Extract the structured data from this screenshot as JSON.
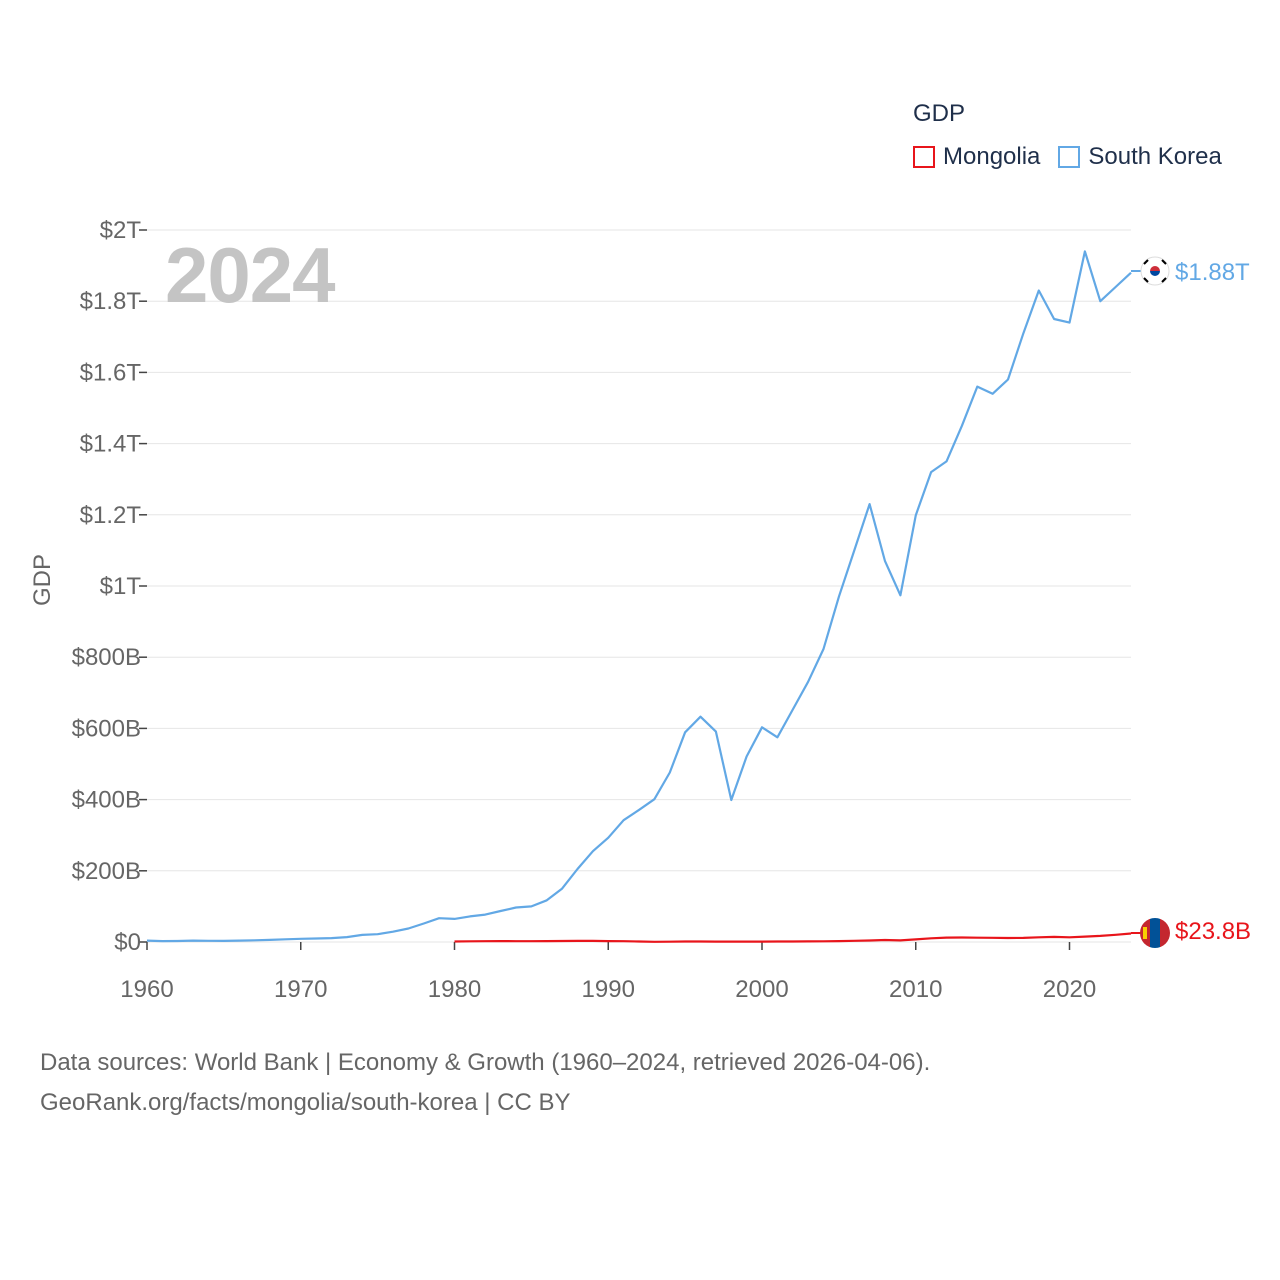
{
  "legend": {
    "title": "GDP",
    "items": [
      {
        "name": "Mongolia",
        "color": "#e8151b"
      },
      {
        "name": "South Korea",
        "color": "#62a8e5"
      }
    ]
  },
  "year_display": "2024",
  "footer": {
    "line1": "Data sources: World Bank | Economy & Growth (1960–2024, retrieved 2026-04-06).",
    "line2": "GeoRank.org/facts/mongolia/south-korea | CC BY"
  },
  "end_labels": {
    "south_korea": "$1.88T",
    "mongolia": "$23.8B"
  },
  "icons": {
    "south_korea_flag": "south-korea-flag-icon",
    "mongolia_flag": "mongolia-flag-icon"
  },
  "chart_data": {
    "type": "line",
    "title": "",
    "xlabel": "",
    "ylabel": "GDP",
    "xlim": [
      1960,
      2024
    ],
    "ylim": [
      0,
      2000
    ],
    "y_units": "billions USD",
    "x_ticks": [
      1960,
      1970,
      1980,
      1990,
      2000,
      2010,
      2020
    ],
    "y_ticks": [
      0,
      200,
      400,
      600,
      800,
      1000,
      1200,
      1400,
      1600,
      1800,
      2000
    ],
    "y_tick_labels": [
      "$0",
      "$200B",
      "$400B",
      "$600B",
      "$800B",
      "$1T",
      "$1.2T",
      "$1.4T",
      "$1.6T",
      "$1.8T",
      "$2T"
    ],
    "grid": true,
    "legend_position": "top-right",
    "series": [
      {
        "name": "South Korea",
        "color": "#62a8e5",
        "x": [
          1960,
          1961,
          1962,
          1963,
          1964,
          1965,
          1966,
          1967,
          1968,
          1969,
          1970,
          1971,
          1972,
          1973,
          1974,
          1975,
          1976,
          1977,
          1978,
          1979,
          1980,
          1981,
          1982,
          1983,
          1984,
          1985,
          1986,
          1987,
          1988,
          1989,
          1990,
          1991,
          1992,
          1993,
          1994,
          1995,
          1996,
          1997,
          1998,
          1999,
          2000,
          2001,
          2002,
          2003,
          2004,
          2005,
          2006,
          2007,
          2008,
          2009,
          2010,
          2011,
          2012,
          2013,
          2014,
          2015,
          2016,
          2017,
          2018,
          2019,
          2020,
          2021,
          2022,
          2023,
          2024
        ],
        "values": [
          4,
          2.4,
          2.8,
          3.9,
          3.5,
          3.1,
          3.8,
          4.7,
          5.9,
          7.5,
          9,
          9.9,
          10.9,
          13.9,
          19.9,
          21.9,
          29,
          37.9,
          51.9,
          66.9,
          65,
          72,
          77,
          87,
          97,
          100,
          117,
          150,
          205,
          255,
          293,
          342,
          371,
          401,
          476,
          589,
          633,
          591,
          399,
          521,
          603,
          575,
          653,
          731,
          823,
          970,
          1100,
          1230,
          1070,
          974,
          1199,
          1320,
          1350,
          1450,
          1560,
          1540,
          1580,
          1710,
          1830,
          1750,
          1740,
          1940,
          1800,
          1840,
          1880
        ]
      },
      {
        "name": "Mongolia",
        "color": "#e8151b",
        "x": [
          1980,
          1981,
          1982,
          1983,
          1984,
          1985,
          1986,
          1987,
          1988,
          1989,
          1990,
          1991,
          1992,
          1993,
          1994,
          1995,
          1996,
          1997,
          1998,
          1999,
          2000,
          2001,
          2002,
          2003,
          2004,
          2005,
          2006,
          2007,
          2008,
          2009,
          2010,
          2011,
          2012,
          2013,
          2014,
          2015,
          2016,
          2017,
          2018,
          2019,
          2020,
          2021,
          2022,
          2023,
          2024
        ],
        "values": [
          1.5,
          2,
          2.3,
          2.5,
          2.2,
          2.3,
          2.6,
          2.8,
          3,
          3,
          2.6,
          2.2,
          1.4,
          0.6,
          0.9,
          1.3,
          1.3,
          1.2,
          1.1,
          1,
          1.1,
          1.3,
          1.4,
          1.6,
          1.9,
          2.5,
          3.4,
          4.2,
          5.6,
          4.6,
          7.2,
          10.4,
          12.3,
          12.6,
          12.2,
          11.8,
          11.2,
          11.4,
          13.1,
          14.2,
          13.3,
          15.3,
          17.1,
          20.3,
          23.8
        ]
      }
    ]
  }
}
